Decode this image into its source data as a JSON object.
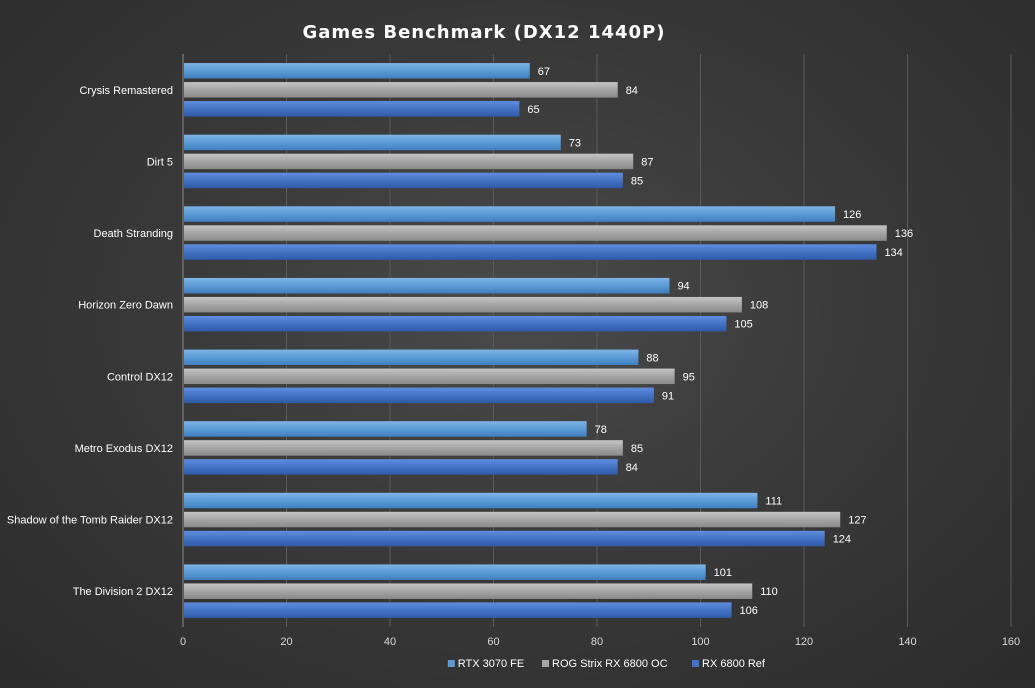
{
  "chart_data": {
    "type": "bar",
    "orientation": "horizontal",
    "title": "Games  Benchmark  (DX12  1440P)",
    "xlabel": "",
    "ylabel": "",
    "xlim": [
      0,
      160
    ],
    "x_ticks": [
      0,
      20,
      40,
      60,
      80,
      100,
      120,
      140,
      160
    ],
    "grid": true,
    "legend_position": "bottom",
    "categories": [
      "Crysis Remastered",
      "Dirt 5",
      "Death Stranding",
      "Horizon Zero Dawn",
      "Control DX12",
      "Metro Exodus DX12",
      "Shadow of the Tomb Raider DX12",
      "The Division 2 DX12"
    ],
    "series": [
      {
        "name": "RTX 3070 FE",
        "color": "#5b9bd5",
        "values": [
          67,
          73,
          126,
          94,
          88,
          78,
          111,
          101
        ]
      },
      {
        "name": "ROG Strix RX 6800 OC",
        "color": "#a5a5a5",
        "values": [
          84,
          87,
          136,
          108,
          95,
          85,
          127,
          110
        ]
      },
      {
        "name": "RX 6800 Ref",
        "color": "#4472c4",
        "values": [
          65,
          85,
          134,
          105,
          91,
          84,
          124,
          106
        ]
      }
    ]
  }
}
